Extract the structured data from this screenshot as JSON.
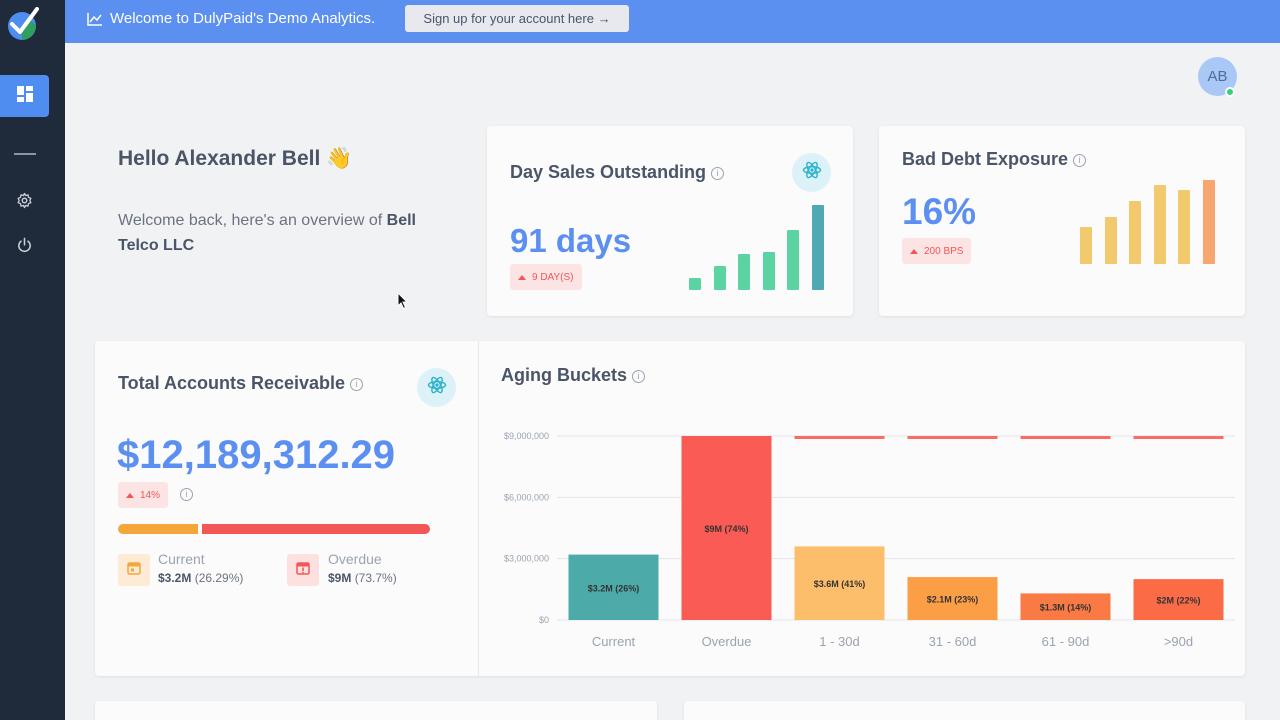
{
  "banner": {
    "text": "Welcome to DulyPaid's Demo Analytics.",
    "button_label": "Sign up for your account here →"
  },
  "user": {
    "initials": "AB"
  },
  "greeting": {
    "hello": "Hello Alexander Bell 👋",
    "welcome_prefix": "Welcome back, here's an overview of ",
    "company": "Bell Telco LLC"
  },
  "dso": {
    "title": "Day Sales Outstanding",
    "value": "91 days",
    "badge": "9 DAY(S)",
    "bars": [
      12,
      24,
      36,
      38,
      60,
      85
    ],
    "bar_colors": [
      "#5cd3a3",
      "#5cd3a3",
      "#5cd3a3",
      "#5cd3a3",
      "#5cd3a3",
      "#4fa9b5"
    ]
  },
  "bad_debt": {
    "title": "Bad Debt Exposure",
    "value": "16%",
    "badge": "200 BPS",
    "bars": [
      37,
      47,
      63,
      79,
      74,
      84
    ],
    "bar_colors": [
      "#f2c96c",
      "#f2c96c",
      "#f2c96c",
      "#f2c96c",
      "#f2c96c",
      "#f6a66e"
    ]
  },
  "receivable": {
    "title": "Total Accounts Receivable",
    "value": "$12,189,312.29",
    "badge": "14%",
    "split": {
      "current_fraction": 0.2629,
      "current_color": "#f5a63a",
      "overdue_color": "#f25757"
    },
    "current": {
      "label": "Current",
      "amount": "$3.2M",
      "percent": "(26.29%)"
    },
    "overdue": {
      "label": "Overdue",
      "amount": "$9M",
      "percent": "(73.7%)"
    }
  },
  "aging": {
    "title": "Aging Buckets"
  },
  "chart_data": {
    "type": "bar",
    "title": "Aging Buckets",
    "categories": [
      "Current",
      "Overdue",
      "1 - 30d",
      "31 - 60d",
      "61 - 90d",
      ">90d"
    ],
    "values": [
      3200000,
      9000000,
      3600000,
      2100000,
      1300000,
      2000000
    ],
    "data_labels": [
      "$3.2M (26%)",
      "$9M (74%)",
      "$3.6M (41%)",
      "$2.1M (23%)",
      "$1.3M (14%)",
      "$2M (22%)"
    ],
    "colors": [
      "#4caaa8",
      "#fb5b55",
      "#fcbe6a",
      "#fb9e46",
      "#fa7a45",
      "#fa6b46"
    ],
    "overlay_color": "#fa6b66",
    "yticks": [
      0,
      3000000,
      6000000,
      9000000
    ],
    "ytick_labels": [
      "$0",
      "$3,000,000",
      "$6,000,000",
      "$9,000,000"
    ],
    "ylim": [
      0,
      9000000
    ],
    "grid": true
  }
}
